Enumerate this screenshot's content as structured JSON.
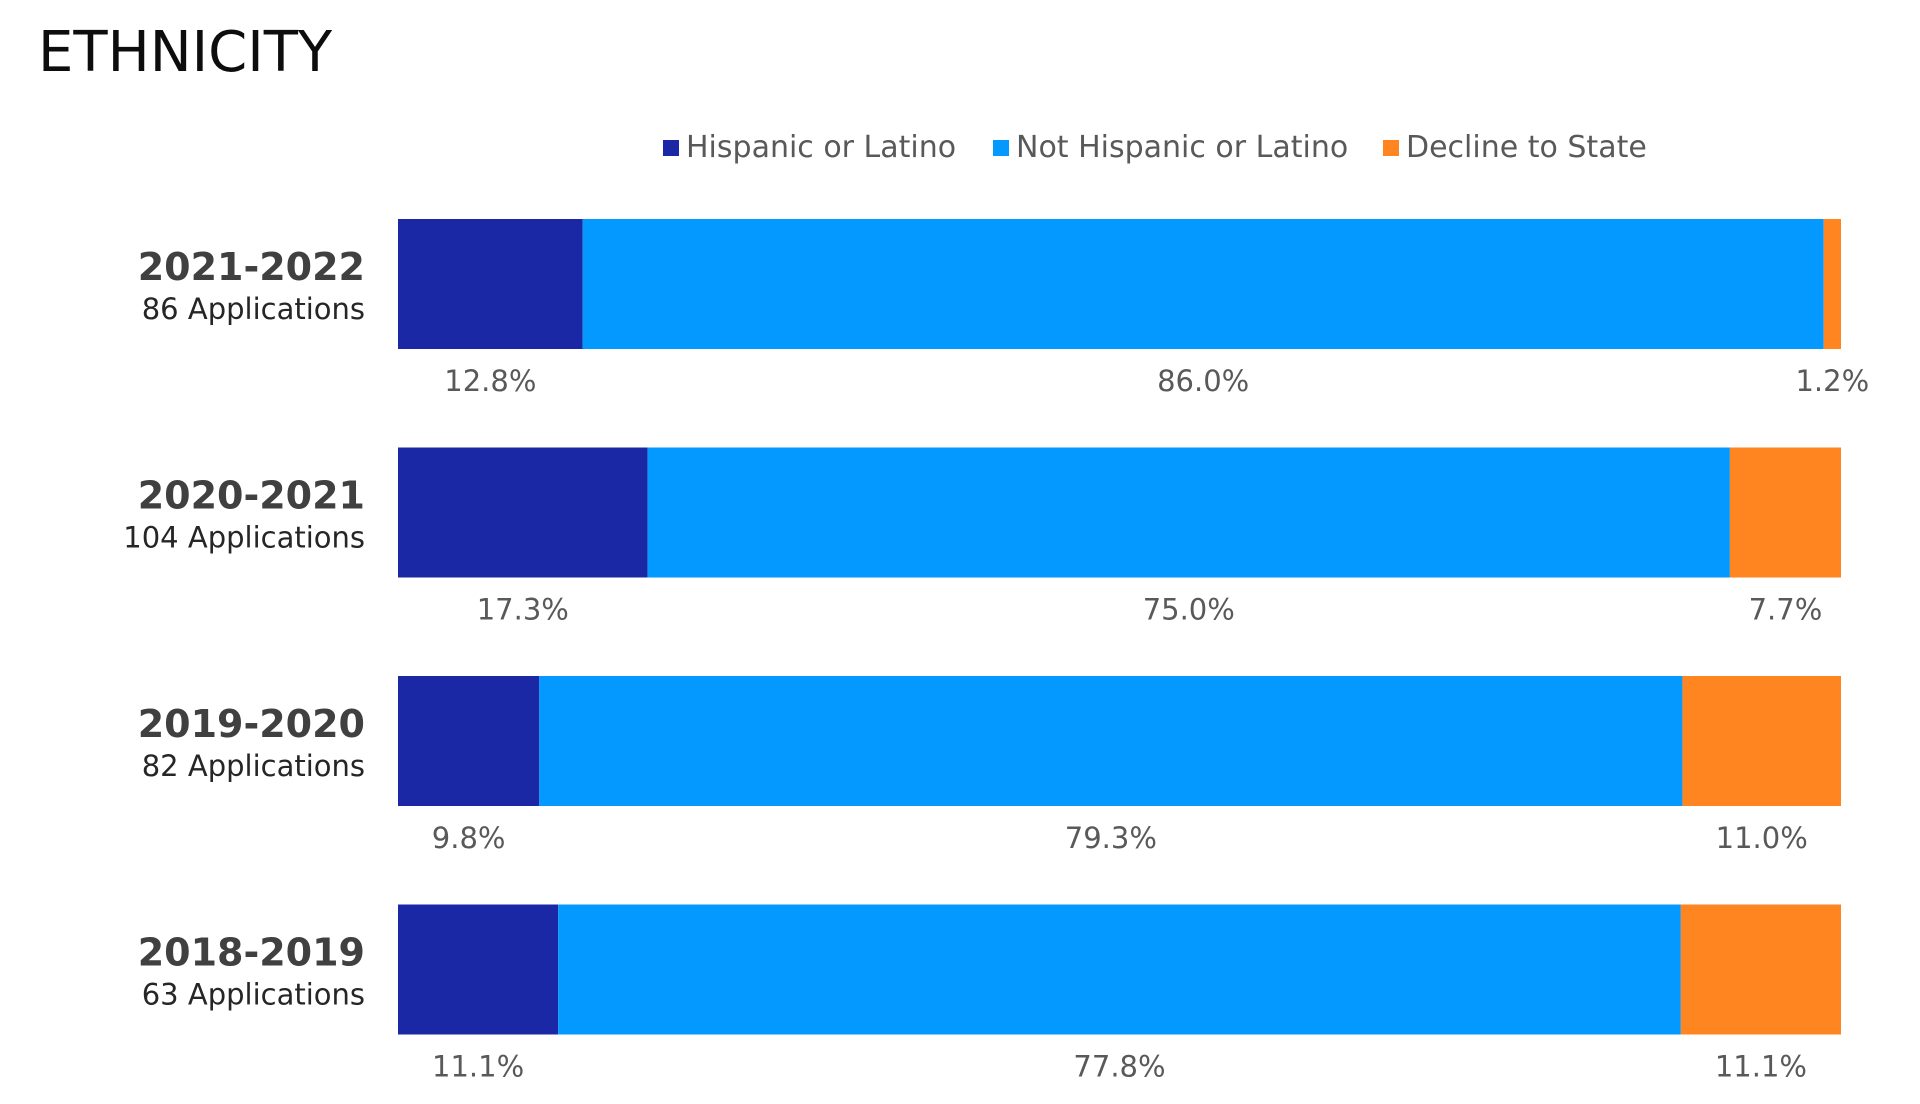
{
  "title": "ETHNICITY",
  "colors": {
    "hispanic": "#1a28a6",
    "not_hispanic": "#0399fe",
    "decline": "#fe8520"
  },
  "chart_data": {
    "type": "bar",
    "orientation": "horizontal",
    "stacked": true,
    "normalized": true,
    "legend_position": "top",
    "grid": false,
    "xlim": [
      0,
      100
    ],
    "categories": [
      "2021-2022",
      "2020-2021",
      "2019-2020",
      "2018-2019"
    ],
    "category_subtitles": [
      "86 Applications",
      "104 Applications",
      "82 Applications",
      "63 Applications"
    ],
    "series": [
      {
        "name": "Hispanic or Latino",
        "color": "#1a28a6",
        "values": [
          12.8,
          17.3,
          9.8,
          11.1
        ],
        "labels": [
          "12.8%",
          "17.3%",
          "9.8%",
          "11.1%"
        ]
      },
      {
        "name": "Not Hispanic or Latino",
        "color": "#0399fe",
        "values": [
          86.0,
          75.0,
          79.3,
          77.8
        ],
        "labels": [
          "86.0%",
          "75.0%",
          "79.3%",
          "77.8%"
        ]
      },
      {
        "name": "Decline to State",
        "color": "#fe8520",
        "values": [
          1.2,
          7.7,
          11.0,
          11.1
        ],
        "labels": [
          "1.2%",
          "7.7%",
          "11.0%",
          "11.1%"
        ]
      }
    ]
  }
}
